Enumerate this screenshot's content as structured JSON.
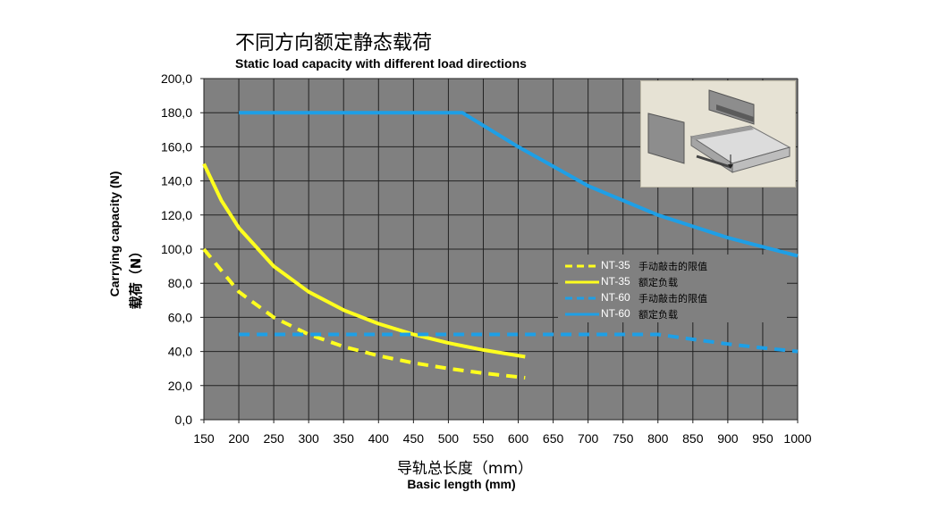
{
  "title_cn": "不同方向额定静态载荷",
  "title_en": "Static load capacity with different load directions",
  "colors": {
    "plot_bg": "#808080",
    "grid": "#222222",
    "yellow": "#ffff1e",
    "blue": "#1e9fe6",
    "inset_bg": "#e6e2d4"
  },
  "inset": {
    "icon": "drawer-slide-illustration"
  },
  "chart_data": {
    "type": "line",
    "title": "不同方向额定静态载荷 / Static load capacity with different load directions",
    "xlabel": "导轨总长度（mm）",
    "xlabel_en": "Basic length (mm)",
    "ylabel": "Carrying capacity (N)",
    "ylabel_cn": "载荷（N）",
    "xlim": [
      150,
      1000
    ],
    "ylim": [
      0,
      200
    ],
    "x_ticks": [
      "150",
      "200",
      "250",
      "300",
      "350",
      "400",
      "450",
      "500",
      "550",
      "600",
      "650",
      "700",
      "750",
      "800",
      "850",
      "900",
      "950",
      "1000"
    ],
    "y_ticks": [
      "0,0",
      "20,0",
      "40,0",
      "60,0",
      "80,0",
      "100,0",
      "120,0",
      "140,0",
      "160,0",
      "180,0",
      "200,0"
    ],
    "grid": true,
    "legend_position": "center-right",
    "series": [
      {
        "name": "NT-35",
        "label": "手动敲击的限值",
        "color": "#ffff1e",
        "style": "dashed",
        "x": [
          150,
          200,
          250,
          300,
          350,
          400,
          450,
          500,
          550,
          610
        ],
        "y": [
          100,
          75,
          60,
          50,
          42.9,
          37.5,
          33.3,
          30,
          27.3,
          24.6
        ]
      },
      {
        "name": "NT-35",
        "label": "额定负载",
        "color": "#ffff1e",
        "style": "solid",
        "x": [
          150,
          175,
          200,
          250,
          300,
          350,
          400,
          450,
          500,
          550,
          610
        ],
        "y": [
          150,
          128.6,
          112.5,
          90,
          75,
          64.3,
          56.3,
          50,
          45,
          40.9,
          36.9
        ]
      },
      {
        "name": "NT-60",
        "label": "手动敲击的限值",
        "color": "#1e9fe6",
        "style": "dashed",
        "x": [
          200,
          300,
          400,
          500,
          600,
          700,
          800,
          850,
          900,
          950,
          1000
        ],
        "y": [
          50,
          50,
          50,
          50,
          50,
          50,
          50,
          47.1,
          44.4,
          42.1,
          40
        ]
      },
      {
        "name": "NT-60",
        "label": "额定负载",
        "color": "#1e9fe6",
        "style": "solid",
        "x": [
          200,
          300,
          400,
          520,
          600,
          700,
          800,
          900,
          1000
        ],
        "y": [
          180,
          180,
          180,
          180,
          160,
          137.1,
          120,
          106.7,
          96
        ]
      }
    ]
  }
}
